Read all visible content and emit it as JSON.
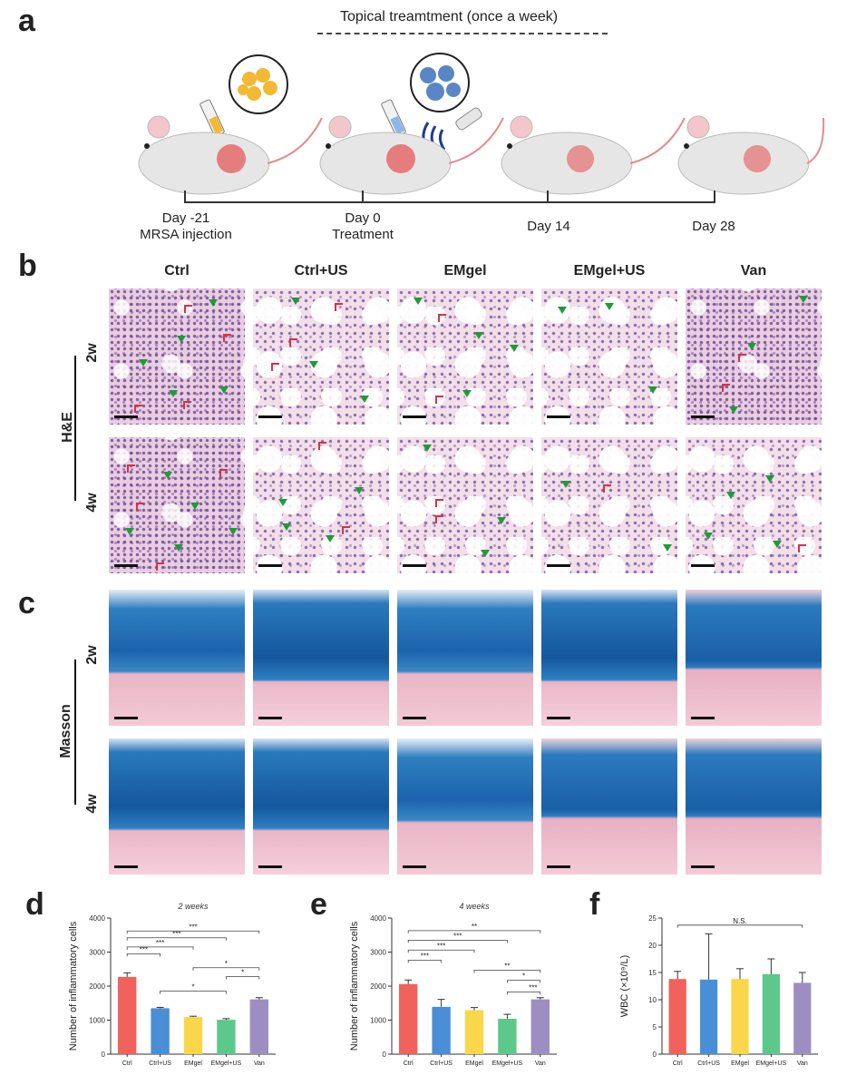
{
  "panel_a": {
    "letter": "a",
    "banner": "Topical treamtment (once a week)",
    "timeline": [
      {
        "line1": "Day -21",
        "line2": "MRSA injection"
      },
      {
        "line1": "Day 0",
        "line2": "Treatment"
      },
      {
        "line1": "Day 14",
        "line2": ""
      },
      {
        "line1": "Day 28",
        "line2": ""
      }
    ]
  },
  "panel_b": {
    "letter": "b",
    "row_group": "H&E",
    "rows": [
      "2w",
      "4w"
    ],
    "columns": [
      "Ctrl",
      "Ctrl+US",
      "EMgel",
      "EMgel+US",
      "Van"
    ]
  },
  "panel_c": {
    "letter": "c",
    "row_group": "Masson",
    "rows": [
      "2w",
      "4w"
    ]
  },
  "colors": {
    "Ctrl": "#f0625b",
    "Ctrl+US": "#4a8fd6",
    "EMgel": "#f9d64a",
    "EMgel+US": "#5cc98b",
    "Van": "#9d8ec2"
  },
  "chart_data": [
    {
      "letter": "d",
      "type": "bar",
      "title": "2 weeks",
      "ylabel": "Number of inflammatory cells",
      "xlabel": "",
      "categories": [
        "Ctrl",
        "Ctrl+US",
        "EMgel",
        "EMgel+US",
        "Van"
      ],
      "values": [
        2270,
        1350,
        1090,
        1010,
        1610
      ],
      "errors": [
        120,
        25,
        25,
        35,
        50
      ],
      "ylim": [
        0,
        4000
      ],
      "yticks": [
        "0",
        "1000",
        "2000",
        "3000",
        "4000"
      ],
      "brackets": [
        {
          "from": 0,
          "to": 1,
          "y": 2950,
          "label": "***"
        },
        {
          "from": 0,
          "to": 2,
          "y": 3150,
          "label": "***"
        },
        {
          "from": 0,
          "to": 3,
          "y": 3420,
          "label": "***"
        },
        {
          "from": 0,
          "to": 4,
          "y": 3620,
          "label": "***"
        },
        {
          "from": 1,
          "to": 3,
          "y": 1850,
          "label": "*"
        },
        {
          "from": 2,
          "to": 4,
          "y": 2540,
          "label": "*"
        },
        {
          "from": 3,
          "to": 4,
          "y": 2280,
          "label": "*"
        }
      ]
    },
    {
      "letter": "e",
      "type": "bar",
      "title": "4 weeks",
      "ylabel": "Number of inflammatory cells",
      "xlabel": "",
      "categories": [
        "Ctrl",
        "Ctrl+US",
        "EMgel",
        "EMgel+US",
        "Van"
      ],
      "values": [
        2060,
        1390,
        1290,
        1040,
        1610
      ],
      "errors": [
        120,
        220,
        80,
        130,
        50
      ],
      "ylim": [
        0,
        4000
      ],
      "yticks": [
        "0",
        "1000",
        "2000",
        "3000",
        "4000"
      ],
      "brackets": [
        {
          "from": 0,
          "to": 1,
          "y": 2760,
          "label": "***"
        },
        {
          "from": 0,
          "to": 2,
          "y": 3060,
          "label": "***"
        },
        {
          "from": 0,
          "to": 3,
          "y": 3350,
          "label": "***"
        },
        {
          "from": 0,
          "to": 4,
          "y": 3630,
          "label": "**"
        },
        {
          "from": 2,
          "to": 4,
          "y": 2470,
          "label": "**"
        },
        {
          "from": 3,
          "to": 4,
          "y": 2170,
          "label": "*"
        },
        {
          "from": 3,
          "to": 4,
          "y": 1830,
          "label": "***",
          "offset": 1
        }
      ]
    },
    {
      "letter": "f",
      "type": "bar",
      "title": "",
      "ylabel": "WBC (×10⁹/L)",
      "xlabel": "",
      "categories": [
        "Ctrl",
        "Ctrl+US",
        "EMgel",
        "EMgel+US",
        "Van"
      ],
      "values": [
        13.8,
        13.7,
        13.8,
        14.7,
        13.1
      ],
      "errors": [
        1.4,
        8.4,
        1.9,
        2.8,
        1.9
      ],
      "ylim": [
        0,
        25
      ],
      "yticks": [
        "0",
        "5",
        "10",
        "15",
        "20",
        "25"
      ],
      "brackets": [
        {
          "from": 0,
          "to": 4,
          "y": 23.7,
          "label": "N.S."
        }
      ]
    }
  ]
}
